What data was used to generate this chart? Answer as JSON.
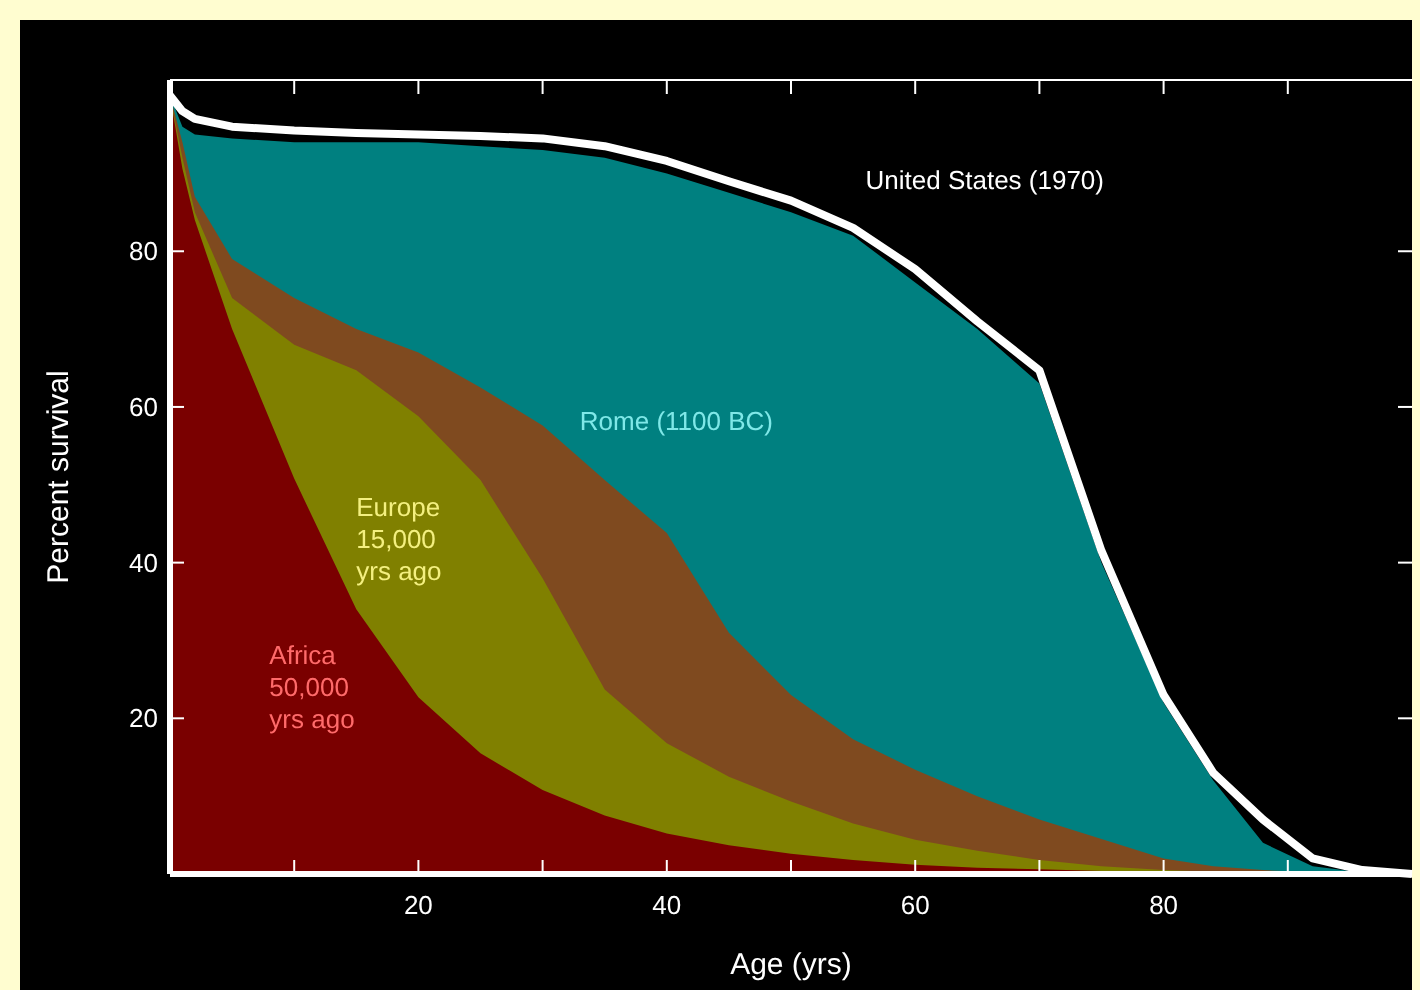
{
  "chart_data": {
    "type": "area",
    "xlabel": "Age (yrs)",
    "ylabel": "Percent survival",
    "xlim": [
      0,
      100
    ],
    "ylim": [
      0,
      102
    ],
    "xticks": [
      {
        "value": 10,
        "label": null
      },
      20,
      {
        "value": 30,
        "label": null
      },
      40,
      {
        "value": 50,
        "label": null
      },
      60,
      {
        "value": 70,
        "label": null
      },
      80,
      {
        "value": 90,
        "label": null
      }
    ],
    "yticks": [
      20,
      40,
      60,
      80
    ],
    "grid": false,
    "legend": false,
    "stacked": false,
    "x": [
      0,
      1,
      2,
      5,
      10,
      15,
      20,
      25,
      30,
      35,
      40,
      45,
      50,
      55,
      60,
      65,
      70,
      75,
      80,
      84,
      88,
      92,
      96,
      100
    ],
    "series": [
      {
        "name": "Rome (1100 BC)",
        "color": "#008080",
        "x": [
          0,
          1,
          2,
          5,
          10,
          15,
          20,
          25,
          30,
          35,
          40,
          45,
          50,
          55,
          60,
          65,
          70,
          75,
          80,
          84,
          88,
          92,
          97
        ],
        "values": [
          100,
          96,
          95,
          94.5,
          94,
          94,
          94,
          93.5,
          93,
          92,
          90,
          87.5,
          85,
          82,
          76,
          70,
          63,
          40,
          22,
          12,
          4,
          1,
          0
        ]
      },
      {
        "name": null,
        "color": "#7f4a1f",
        "x": [
          0,
          1,
          2,
          5,
          10,
          15,
          20,
          25,
          30,
          35,
          40,
          45,
          50,
          55,
          60,
          65,
          70,
          75,
          80,
          84,
          88,
          95
        ],
        "values": [
          100,
          94,
          87,
          79,
          74,
          70,
          67,
          62.5,
          57.6,
          50.6,
          43.8,
          31,
          23,
          17.3,
          13.4,
          10,
          7,
          4.5,
          2,
          1,
          0.5,
          0
        ]
      },
      {
        "name": "Europe\n15,000\nyrs ago",
        "color": "#808000",
        "x": [
          0,
          1,
          2,
          5,
          10,
          15,
          20,
          25,
          30,
          35,
          40,
          45,
          50,
          55,
          60,
          65,
          70,
          75,
          80,
          84,
          91
        ],
        "values": [
          100,
          92,
          85,
          74,
          68,
          64.7,
          58.8,
          50.6,
          38,
          23.7,
          16.8,
          12.5,
          9.3,
          6.5,
          4.4,
          3,
          1.8,
          1,
          0.5,
          0.3,
          0
        ]
      },
      {
        "name": "Africa\n50,000\nyrs ago",
        "color": "#7a0000",
        "x": [
          0,
          1,
          2,
          5,
          10,
          15,
          20,
          25,
          30,
          35,
          40,
          45,
          50,
          55,
          60,
          65,
          70,
          75,
          80,
          87
        ],
        "values": [
          100,
          90.6,
          84,
          70,
          50.8,
          34,
          22.7,
          15.5,
          10.8,
          7.5,
          5.2,
          3.7,
          2.6,
          1.8,
          1.2,
          0.8,
          0.6,
          0.4,
          0.3,
          0
        ]
      },
      {
        "name": "United States (1970)",
        "type": "line",
        "color": "#ffffff",
        "values": [
          100,
          98,
          97,
          96,
          95.5,
          95.2,
          95,
          94.8,
          94.5,
          93.5,
          91.6,
          89,
          86.5,
          83,
          77.7,
          71,
          64.7,
          41.5,
          23,
          13,
          7,
          2,
          0.5,
          0
        ]
      }
    ]
  }
}
